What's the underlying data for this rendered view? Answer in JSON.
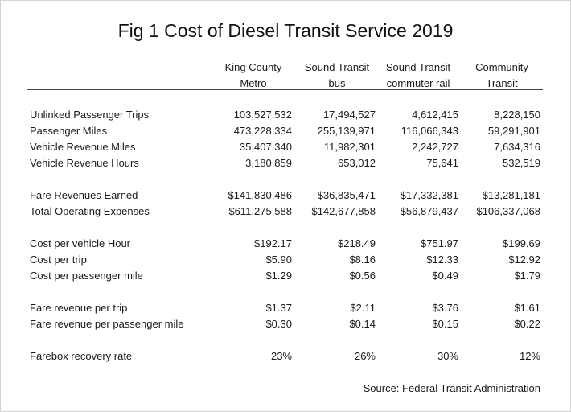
{
  "title": "Fig 1 Cost of Diesel Transit Service 2019",
  "columns": [
    {
      "line1": "King County",
      "line2": "Metro"
    },
    {
      "line1": "Sound Transit",
      "line2": "bus"
    },
    {
      "line1": "Sound Transit",
      "line2": "commuter rail"
    },
    {
      "line1": "Community",
      "line2": "Transit"
    }
  ],
  "rows": [
    {
      "label": "Unlinked Passenger Trips",
      "values": [
        "103,527,532",
        "17,494,527",
        "4,612,415",
        "8,228,150"
      ]
    },
    {
      "label": "Passenger Miles",
      "values": [
        "473,228,334",
        "255,139,971",
        "116,066,343",
        "59,291,901"
      ]
    },
    {
      "label": "Vehicle Revenue Miles",
      "values": [
        "35,407,340",
        "11,982,301",
        "2,242,727",
        "7,634,316"
      ]
    },
    {
      "label": "Vehicle Revenue Hours",
      "values": [
        "3,180,859",
        "653,012",
        "75,641",
        "532,519"
      ]
    },
    {
      "label": "Fare Revenues Earned",
      "values": [
        "$141,830,486",
        "$36,835,471",
        "$17,332,381",
        "$13,281,181"
      ]
    },
    {
      "label": "Total Operating Expenses",
      "values": [
        "$611,275,588",
        "$142,677,858",
        "$56,879,437",
        "$106,337,068"
      ]
    },
    {
      "label": "Cost per vehicle  Hour",
      "values": [
        "$192.17",
        "$218.49",
        "$751.97",
        "$199.69"
      ]
    },
    {
      "label": "Cost per trip",
      "values": [
        "$5.90",
        "$8.16",
        "$12.33",
        "$12.92"
      ]
    },
    {
      "label": "Cost per passenger mile",
      "values": [
        "$1.29",
        "$0.56",
        "$0.49",
        "$1.79"
      ]
    },
    {
      "label": "Fare revenue per trip",
      "values": [
        "$1.37",
        "$2.11",
        "$3.76",
        "$1.61"
      ]
    },
    {
      "label": "Fare revenue per passenger mile",
      "values": [
        "$0.30",
        "$0.14",
        "$0.15",
        "$0.22"
      ]
    },
    {
      "label": "Farebox recovery rate",
      "values": [
        "23%",
        "26%",
        "30%",
        "12%"
      ]
    }
  ],
  "source": "Source: Federal Transit Administration"
}
